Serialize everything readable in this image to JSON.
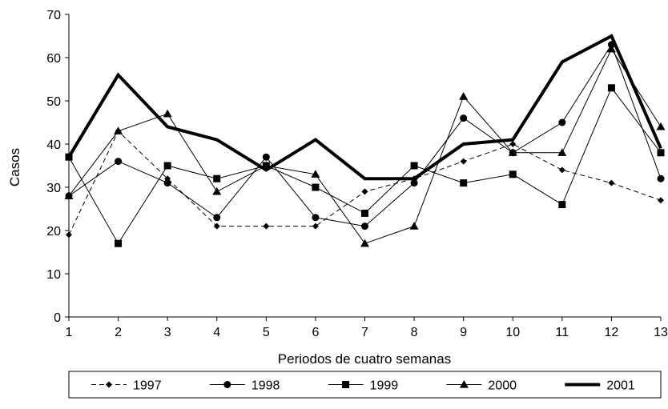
{
  "chart_data": {
    "type": "line",
    "title": "",
    "xlabel": "Periodos de cuatro semanas",
    "ylabel": "Casos",
    "x": [
      1,
      2,
      3,
      4,
      5,
      6,
      7,
      8,
      9,
      10,
      11,
      12,
      13
    ],
    "x_tick_labels": [
      "1",
      "2",
      "3",
      "4",
      "5",
      "6",
      "7",
      "8",
      "9",
      "10",
      "11",
      "12",
      "13"
    ],
    "ylim": [
      0,
      70
    ],
    "y_ticks": [
      0,
      10,
      20,
      30,
      40,
      50,
      60,
      70
    ],
    "y_tick_labels": [
      "0",
      "10",
      "20",
      "30",
      "40",
      "50",
      "60",
      "70"
    ],
    "grid": false,
    "legend_position": "bottom",
    "series": [
      {
        "name": "1997",
        "style": "dashed",
        "marker": "diamond",
        "color": "#000000",
        "values": [
          19,
          43,
          32,
          21,
          21,
          21,
          29,
          32,
          36,
          40,
          34,
          31,
          27
        ]
      },
      {
        "name": "1998",
        "style": "solid",
        "marker": "circle",
        "color": "#000000",
        "values": [
          28,
          36,
          31,
          23,
          37,
          23,
          21,
          31,
          46,
          38,
          45,
          63,
          32
        ]
      },
      {
        "name": "1999",
        "style": "solid",
        "marker": "square",
        "color": "#000000",
        "values": [
          37,
          17,
          35,
          32,
          35,
          30,
          24,
          35,
          31,
          33,
          26,
          53,
          38
        ]
      },
      {
        "name": "2000",
        "style": "solid",
        "marker": "triangle",
        "color": "#000000",
        "values": [
          28,
          43,
          47,
          29,
          35,
          33,
          17,
          21,
          51,
          38,
          38,
          62,
          44
        ]
      },
      {
        "name": "2001",
        "style": "bold",
        "marker": "none",
        "color": "#000000",
        "values": [
          37,
          56,
          44,
          41,
          34,
          41,
          32,
          32,
          40,
          41,
          59,
          65,
          39
        ]
      }
    ]
  }
}
